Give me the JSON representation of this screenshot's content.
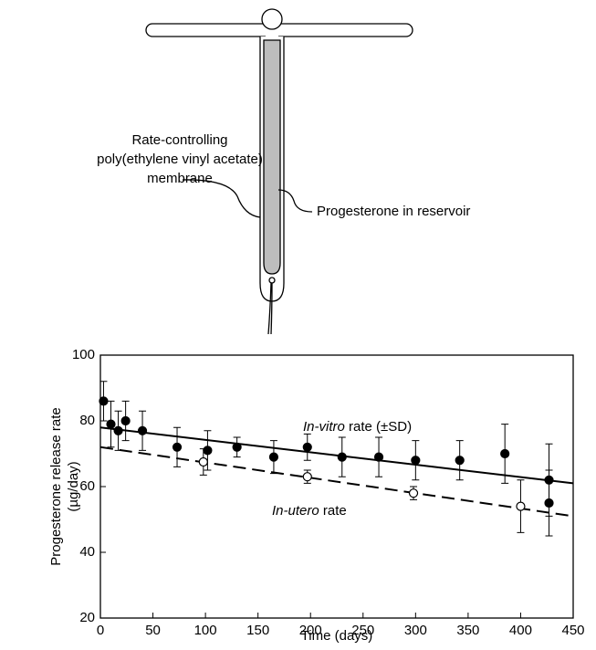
{
  "diagram": {
    "labels": [
      "Rate-controlling",
      "poly(ethylene vinyl acetate)",
      "membrane",
      "Progesterone in reservoir"
    ]
  },
  "chart_data": {
    "type": "scatter",
    "y_label": [
      "Progesterone release rate",
      "(µg/day)"
    ],
    "x_label": "Time (days)",
    "xlim": [
      0,
      450
    ],
    "ylim": [
      20,
      100
    ],
    "xticks": [
      0,
      50,
      100,
      150,
      200,
      250,
      300,
      350,
      400,
      450
    ],
    "yticks": [
      20,
      40,
      60,
      80,
      100
    ],
    "series": [
      {
        "name": "In-vitro",
        "label_rest": " rate (±SD)",
        "color": "#000000",
        "filled": true,
        "dash": "none",
        "x": [
          3,
          10,
          17,
          24,
          40,
          73,
          102,
          130,
          165,
          197,
          230,
          265,
          300,
          342,
          385,
          427,
          427
        ],
        "values": [
          86,
          79,
          77,
          80,
          77,
          72,
          71,
          72,
          69,
          72,
          69,
          69,
          68,
          68,
          70,
          62,
          55
        ],
        "errors": [
          6,
          7,
          6,
          6,
          6,
          6,
          6,
          3,
          5,
          4,
          6,
          6,
          6,
          6,
          9,
          11,
          10
        ],
        "fit": {
          "x": [
            0,
            450
          ],
          "y": [
            78,
            61
          ]
        }
      },
      {
        "name": "In-utero",
        "label_rest": " rate",
        "color": "#000000",
        "filled": false,
        "dash": "14 7",
        "x": [
          98,
          197,
          298,
          400
        ],
        "values": [
          67.5,
          63,
          58,
          54
        ],
        "errors": [
          4,
          2,
          2,
          8
        ],
        "fit": {
          "x": [
            0,
            450
          ],
          "y": [
            72,
            51
          ]
        }
      }
    ]
  }
}
